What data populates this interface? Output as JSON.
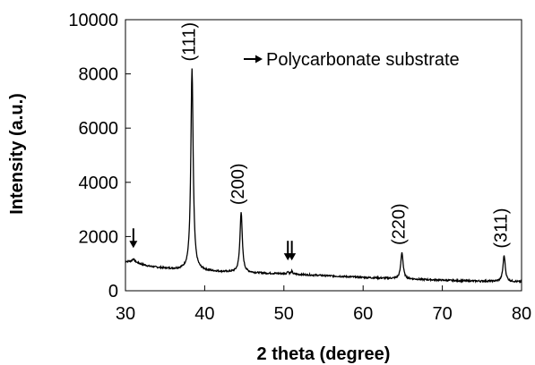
{
  "chart_data": {
    "type": "line",
    "xlabel": "2 theta (degree)",
    "ylabel": "Intensity (a.u.)",
    "xlim": [
      30,
      80
    ],
    "ylim": [
      0,
      10000
    ],
    "xticks": [
      30,
      40,
      50,
      60,
      70,
      80
    ],
    "yticks": [
      0,
      2000,
      4000,
      6000,
      8000,
      10000
    ],
    "grid": false,
    "legend": {
      "text": "Polycarbonate substrate",
      "marker": "arrow",
      "placement": "top-right"
    },
    "background": {
      "x": [
        30,
        31,
        32,
        33,
        34,
        35,
        36,
        37,
        38,
        40,
        42,
        44,
        46,
        48,
        50,
        52,
        55,
        58,
        60,
        62,
        64,
        66,
        68,
        70,
        72,
        74,
        76,
        78,
        80
      ],
      "y": [
        1080,
        1080,
        980,
        900,
        860,
        830,
        800,
        780,
        760,
        730,
        700,
        680,
        660,
        640,
        630,
        600,
        560,
        520,
        490,
        470,
        450,
        430,
        410,
        390,
        370,
        360,
        350,
        340,
        330
      ]
    },
    "peaks": [
      {
        "label": "(111)",
        "x": 38.4,
        "y": 8200,
        "width": 0.35
      },
      {
        "label": "(200)",
        "x": 44.6,
        "y": 2900,
        "width": 0.35
      },
      {
        "label": "(220)",
        "x": 64.9,
        "y": 1420,
        "width": 0.35
      },
      {
        "label": "(311)",
        "x": 77.8,
        "y": 1300,
        "width": 0.35
      }
    ],
    "substrate_peaks": [
      {
        "x": 31.0,
        "y": 1180,
        "width": 0.3
      },
      {
        "x": 50.5,
        "y": 720,
        "width": 0.2
      },
      {
        "x": 51.0,
        "y": 720,
        "width": 0.2
      }
    ],
    "line_color": "#000000"
  }
}
